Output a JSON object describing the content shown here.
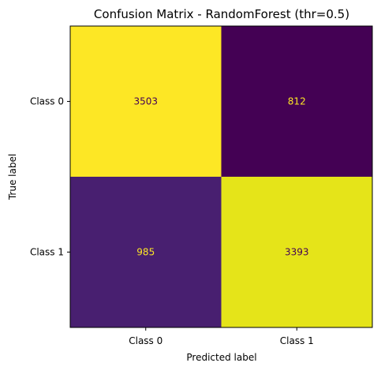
{
  "chart_data": {
    "type": "heatmap",
    "title": "Confusion Matrix - RandomForest (thr=0.5)",
    "xlabel": "Predicted label",
    "ylabel": "True label",
    "x_categories": [
      "Class 0",
      "Class 1"
    ],
    "y_categories": [
      "Class 0",
      "Class 1"
    ],
    "values": [
      [
        3503,
        812
      ],
      [
        985,
        3393
      ]
    ],
    "colormap": "viridis",
    "value_range": [
      812,
      3503
    ],
    "cell_colors": [
      [
        "#fde725",
        "#440154"
      ],
      [
        "#481f70",
        "#e5e419"
      ]
    ],
    "label_colors": {
      "on_dark": "#fde725",
      "on_light": "#440154"
    },
    "colorbar": false,
    "grid": false
  }
}
